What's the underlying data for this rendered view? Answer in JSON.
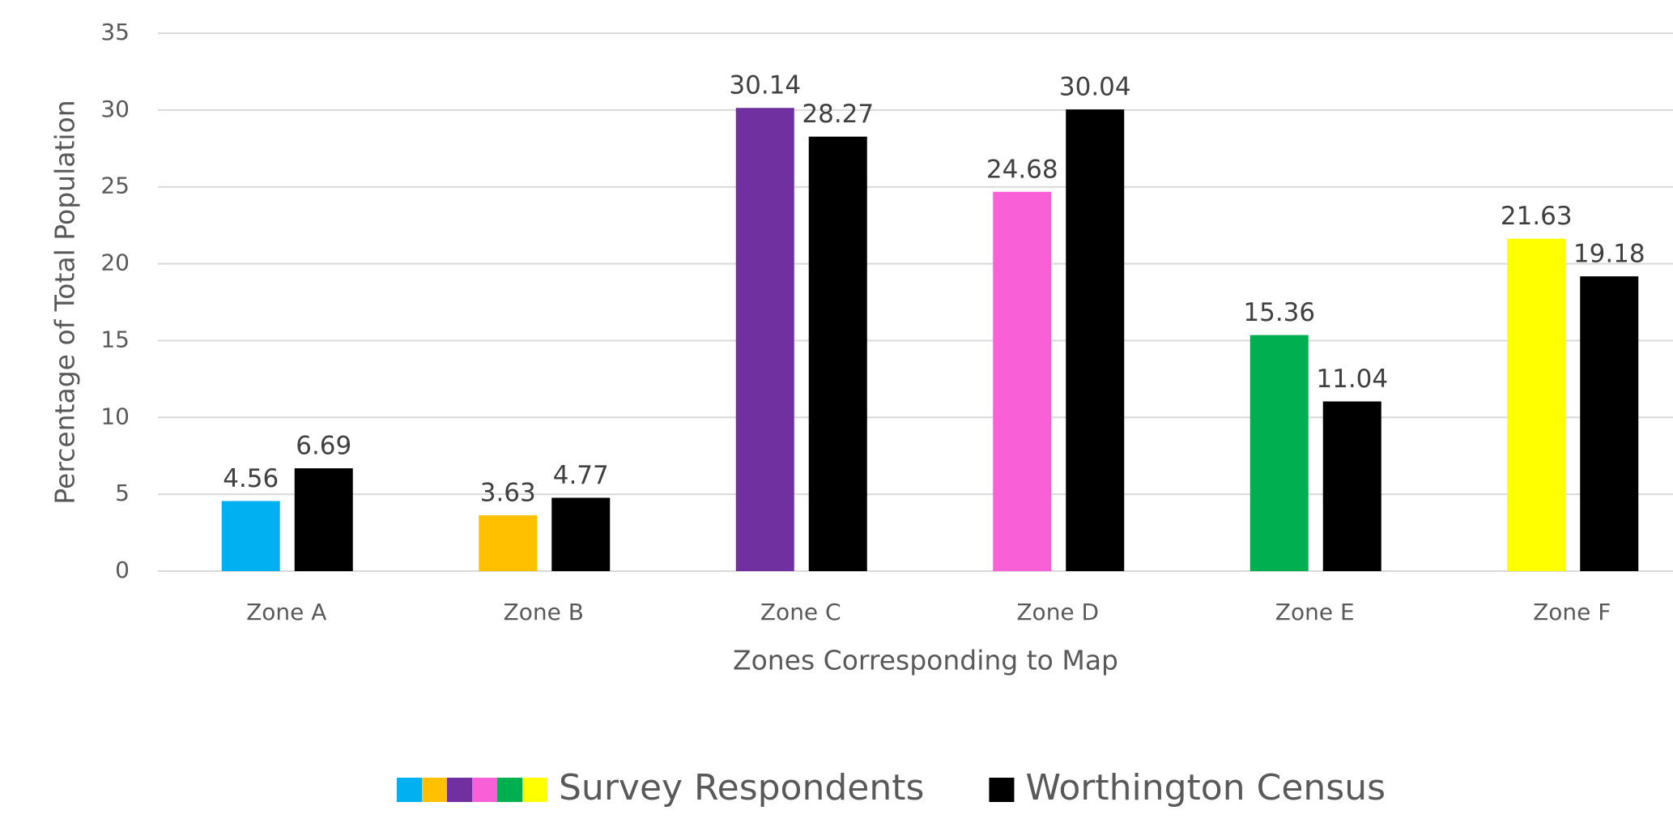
{
  "chart_data": {
    "type": "bar",
    "x_label": "Zones Corresponding to Map",
    "y_label": "Percentage of Total Population",
    "categories": [
      "Zone A",
      "Zone B",
      "Zone C",
      "Zone D",
      "Zone E",
      "Zone F"
    ],
    "series": [
      {
        "name": "Survey Respondents",
        "colors": [
          "#00b0f0",
          "#ffc000",
          "#7030a0",
          "#f95fd6",
          "#00b050",
          "#ffff00"
        ],
        "values": [
          4.56,
          3.63,
          30.14,
          24.68,
          15.36,
          21.63
        ]
      },
      {
        "name": "Worthington Census",
        "color": "#000000",
        "values": [
          6.69,
          4.77,
          28.27,
          30.04,
          11.04,
          19.18
        ]
      }
    ],
    "ylim": [
      0,
      35
    ],
    "yticks": [
      0,
      5,
      10,
      15,
      20,
      25,
      30,
      35
    ],
    "grid": true,
    "legend": "bottom"
  }
}
